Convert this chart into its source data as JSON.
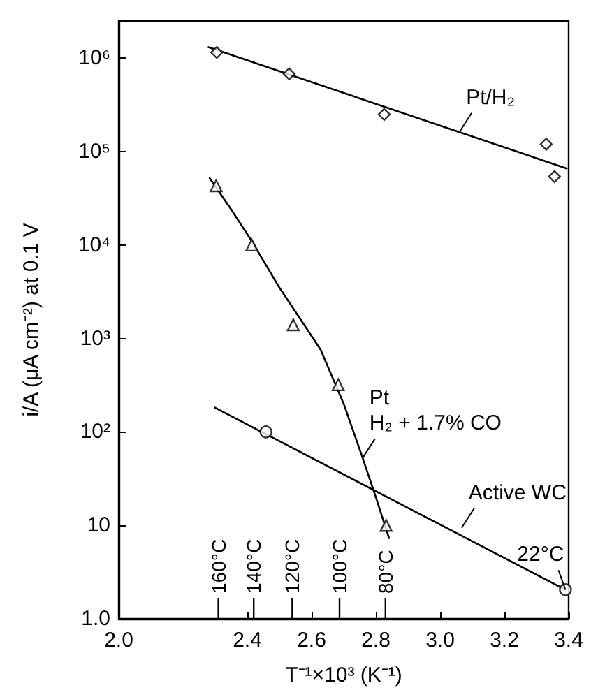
{
  "chart_data": {
    "type": "scatter",
    "xlabel": "T⁻¹×10³ (K⁻¹)",
    "ylabel": "i/A (μA cm⁻²) at 0.1 V",
    "log": "y",
    "grid": false,
    "xlim": [
      2.0,
      3.4
    ],
    "xticks": [
      {
        "value": 2,
        "label": "2.0"
      },
      2.4,
      2.6,
      2.8,
      {
        "value": 3,
        "label": "3.0"
      },
      3.2,
      3.4
    ],
    "ylim": [
      1,
      2500000
    ],
    "yticks": [
      {
        "value": 1,
        "label": "1.0"
      },
      10,
      {
        "value": 100,
        "label": "10²"
      },
      {
        "value": 1000,
        "label": "10³"
      },
      {
        "value": 10000,
        "label": "10⁴"
      },
      {
        "value": 100000,
        "label": "10⁵"
      },
      {
        "value": 1000000,
        "label": "10⁶"
      }
    ],
    "series": [
      {
        "marker": "diamond",
        "color": "#000000",
        "x": [
          2.305,
          2.53,
          2.826,
          3.33,
          3.356
        ],
        "values": [
          1150000,
          680000,
          250000,
          120000,
          54000
        ]
      },
      {
        "type": "line",
        "marker": "none",
        "line_style": "solid",
        "color": "#000000",
        "x": [
          2.279,
          3.394
        ],
        "values": [
          1310000,
          66000
        ]
      },
      {
        "marker": "triangle",
        "color": "#000000",
        "x": [
          2.303,
          2.414,
          2.543,
          2.683,
          2.832
        ],
        "values": [
          43000,
          10000,
          1400,
          320,
          10
        ]
      },
      {
        "type": "line",
        "marker": "none",
        "line_style": "solid",
        "color": "#000000",
        "x": [
          2.283,
          2.35,
          2.414,
          2.5,
          2.571,
          2.628,
          2.7,
          2.757,
          2.8,
          2.841
        ],
        "values": [
          52000,
          24000,
          11000,
          3500,
          1500,
          760,
          200,
          55,
          20,
          7.3
        ]
      },
      {
        "marker": "circle",
        "color": "#000000",
        "x": [
          2.458,
          3.39
        ],
        "values": [
          100,
          2.05
        ]
      },
      {
        "type": "line",
        "marker": "none",
        "line_style": "solid",
        "color": "#000000",
        "x": [
          2.299,
          3.39
        ],
        "values": [
          182,
          2.05
        ]
      }
    ],
    "ref_lines": [
      {
        "axis": "x",
        "value": 2.31,
        "label": "160°C"
      },
      {
        "axis": "x",
        "value": 2.42,
        "label": "140°C"
      },
      {
        "axis": "x",
        "value": 2.54,
        "label": "120°C"
      },
      {
        "axis": "x",
        "value": 2.687,
        "label": "100°C"
      },
      {
        "axis": "x",
        "value": 2.83,
        "label": "80°C"
      }
    ],
    "annotations": [
      {
        "text": "Pt/H₂",
        "x": 3.059,
        "y": 160000
      },
      {
        "text": "Pt\nH₂ + 1.7% CO",
        "x": 2.758,
        "y": 52
      },
      {
        "text": "Active WC",
        "x": 3.067,
        "y": 9.4
      },
      {
        "text": "22°C",
        "x": 3.39,
        "y": 2.05
      }
    ]
  }
}
